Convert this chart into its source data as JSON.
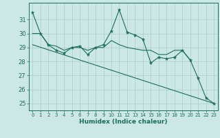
{
  "title": "",
  "xlabel": "Humidex (Indice chaleur)",
  "bg_color": "#cce8e4",
  "grid_color": "#aacccc",
  "line_color": "#1a6b5e",
  "x_values": [
    0,
    1,
    2,
    3,
    4,
    5,
    6,
    7,
    8,
    9,
    10,
    11,
    12,
    13,
    14,
    15,
    16,
    17,
    18,
    19,
    20,
    21,
    22,
    23
  ],
  "line1": [
    31.5,
    30.0,
    29.2,
    28.8,
    28.6,
    29.0,
    29.1,
    28.5,
    29.0,
    29.2,
    30.2,
    31.7,
    30.1,
    29.9,
    29.6,
    27.9,
    28.3,
    28.2,
    28.3,
    28.8,
    28.1,
    26.8,
    25.4,
    25.0
  ],
  "line2": [
    30.0,
    30.0,
    29.2,
    29.1,
    28.8,
    29.0,
    29.0,
    28.8,
    29.0,
    29.0,
    29.5,
    29.2,
    29.0,
    28.9,
    28.8,
    28.8,
    28.5,
    28.5,
    28.8,
    28.8,
    28.1,
    null,
    null,
    null
  ],
  "line3_x": [
    0,
    23
  ],
  "line3_y": [
    29.2,
    25.0
  ],
  "ylim": [
    24.5,
    32.2
  ],
  "xlim": [
    -0.5,
    23.5
  ],
  "yticks": [
    25,
    26,
    27,
    28,
    29,
    30,
    31
  ],
  "xticks": [
    0,
    1,
    2,
    3,
    4,
    5,
    6,
    7,
    8,
    9,
    10,
    11,
    12,
    13,
    14,
    15,
    16,
    17,
    18,
    19,
    20,
    21,
    22,
    23
  ]
}
